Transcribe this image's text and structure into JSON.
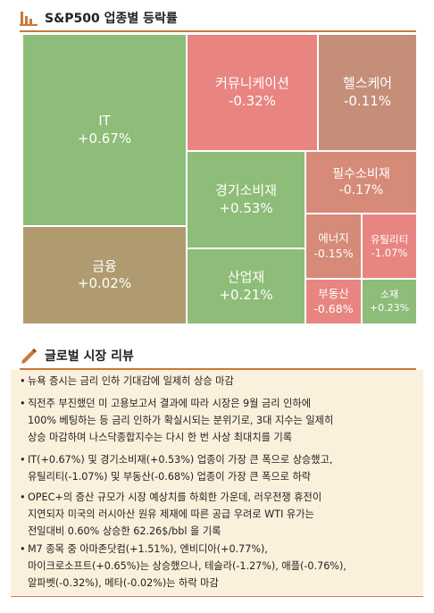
{
  "section1": {
    "title": "S&P500 업종별 등락률"
  },
  "colors": {
    "up": "#8dbd78",
    "up_strong": "#7aa866",
    "down_big": "#e88581",
    "down_mid": "#d68a78",
    "down_small": "#c58e78",
    "flat": "#b09b70",
    "accent": "#c77a3c"
  },
  "treemap": [
    {
      "name": "IT",
      "change": "+0.67%"
    },
    {
      "name": "금융",
      "change": "+0.02%"
    },
    {
      "name": "커뮤니케이션",
      "change": "-0.32%"
    },
    {
      "name": "헬스케어",
      "change": "-0.11%"
    },
    {
      "name": "경기소비재",
      "change": "+0.53%"
    },
    {
      "name": "필수소비재",
      "change": "-0.17%"
    },
    {
      "name": "산업재",
      "change": "+0.21%"
    },
    {
      "name": "에너지",
      "change": "-0.15%"
    },
    {
      "name": "유틸리티",
      "change": "-1.07%"
    },
    {
      "name": "부동산",
      "change": "-0.68%"
    },
    {
      "name": "소재",
      "change": "+0.23%"
    }
  ],
  "section2": {
    "title": "글로벌 시장 리뷰",
    "bullets": [
      [
        "뉴욕 증시는 금리 인하 기대감에 일제히 상승 마감"
      ],
      [
        "직전주 부진했던 미 고용보고서 결과에 따라 시장은 9월 금리 인하에",
        "100% 베팅하는 등 금리 인하가 확실시되는 분위기로, 3대 지수는 일제히",
        "상승 마감하며 나스닥종합지수는 다시 한 번 사상 최대치를 기록"
      ],
      [
        "IT(+0.67%) 및 경기소비재(+0.53%) 업종이 가장 큰 폭으로 상승했고,",
        "유틸리티(-1.07%) 및 부동산(-0.68%) 업종이 가장 큰 폭으로 하락"
      ],
      [
        "OPEC+의 증산 규모가 시장 예상치를 하회한 가운데, 러우전쟁 휴전이",
        "지연되자 미국의 러시아산 원유 제재에 따른 공급 우려로 WTI 유가는",
        "전일대비 0.60% 상승한 62.26$/bbl 을 기록"
      ],
      [
        "M7 종목 중 아마존닷컴(+1.51%), 엔비디아(+0.77%),",
        "마이크로소프트(+0.65%)는 상승했으나, 테슬라(-1.27%), 애플(-0.76%),",
        "알파벳(-0.32%), 메타(-0.02%)는 하락 마감"
      ]
    ]
  }
}
